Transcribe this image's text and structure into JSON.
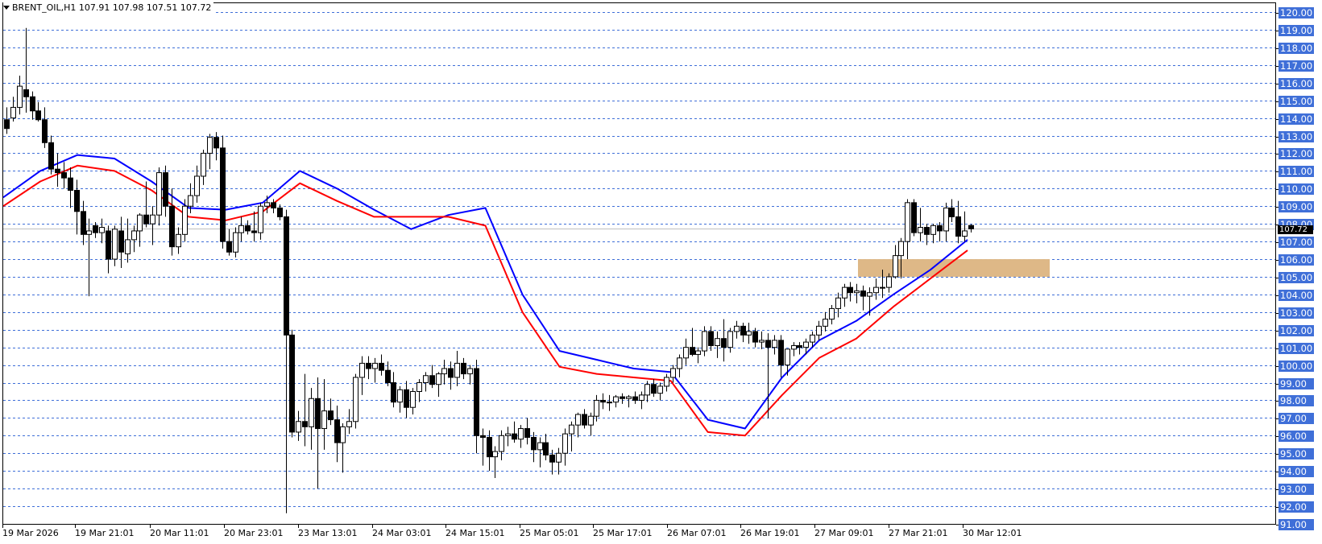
{
  "header": {
    "symbol_line": "BRENT_OIL,H1  107.91 107.98 107.51 107.72",
    "symbol": "BRENT_OIL",
    "timeframe": "H1",
    "open": 107.91,
    "high": 107.98,
    "low": 107.51,
    "close": 107.72
  },
  "price_axis": {
    "labels": [
      "120.00",
      "119.00",
      "118.00",
      "117.00",
      "116.00",
      "115.00",
      "114.00",
      "113.00",
      "112.00",
      "111.00",
      "110.00",
      "109.00",
      "108.00",
      "107.00",
      "106.00",
      "105.00",
      "104.00",
      "103.00",
      "102.00",
      "101.00",
      "100.00",
      "99.00",
      "98.00",
      "97.00",
      "96.00",
      "95.00",
      "94.00",
      "93.00",
      "92.00",
      "91.00"
    ],
    "current_price": "107.72",
    "label_bg": "#3f6fd8"
  },
  "time_axis": {
    "labels": [
      "19 Mar 2026",
      "19 Mar 21:01",
      "20 Mar 11:01",
      "20 Mar 23:01",
      "23 Mar 13:01",
      "24 Mar 03:01",
      "24 Mar 15:01",
      "25 Mar 05:01",
      "25 Mar 17:01",
      "26 Mar 07:01",
      "26 Mar 19:01",
      "27 Mar 09:01",
      "27 Mar 21:01",
      "30 Mar 12:01"
    ]
  },
  "colors": {
    "grid": "#3f6fd8",
    "ma_fast": "#0000ff",
    "ma_slow": "#ff0000",
    "zone": "#deb887",
    "bull": "#ffffff",
    "bear": "#000000",
    "bid_line": "#c0c0c0"
  },
  "chart_data": {
    "type": "candlestick",
    "title": "BRENT_OIL,H1",
    "ylim": [
      91,
      120
    ],
    "xlabel": "",
    "ylabel": "",
    "grid": true,
    "x_tick_labels": [
      "19 Mar 2026",
      "19 Mar 21:01",
      "20 Mar 11:01",
      "20 Mar 23:01",
      "23 Mar 13:01",
      "24 Mar 03:01",
      "24 Mar 15:01",
      "25 Mar 05:01",
      "25 Mar 17:01",
      "26 Mar 07:01",
      "26 Mar 19:01",
      "27 Mar 09:01",
      "27 Mar 21:01",
      "30 Mar 12:01"
    ],
    "last_bar": {
      "open": 107.91,
      "high": 107.98,
      "low": 107.51,
      "close": 107.72
    },
    "candles": [
      [
        113.9,
        114.6,
        113.1,
        113.4
      ],
      [
        114.0,
        115.2,
        113.8,
        114.6
      ],
      [
        114.6,
        116.4,
        114.2,
        115.8
      ],
      [
        115.6,
        119.1,
        114.3,
        115.2
      ],
      [
        115.2,
        115.5,
        113.9,
        114.4
      ],
      [
        114.4,
        114.9,
        113.8,
        113.9
      ],
      [
        113.9,
        114.6,
        112.3,
        112.6
      ],
      [
        112.6,
        113.0,
        110.8,
        111.1
      ],
      [
        111.1,
        112.0,
        110.1,
        110.9
      ],
      [
        110.9,
        111.5,
        110.0,
        110.6
      ],
      [
        110.6,
        111.2,
        108.9,
        109.9
      ],
      [
        109.9,
        110.5,
        107.4,
        108.7
      ],
      [
        108.7,
        109.3,
        106.8,
        107.4
      ],
      [
        107.4,
        108.3,
        103.9,
        107.6
      ],
      [
        107.9,
        108.1,
        107.2,
        107.5
      ],
      [
        107.5,
        108.3,
        106.9,
        107.8
      ],
      [
        107.6,
        107.9,
        105.2,
        106.0
      ],
      [
        106.0,
        107.9,
        105.6,
        107.7
      ],
      [
        107.6,
        108.4,
        105.5,
        106.4
      ],
      [
        106.3,
        108.3,
        105.8,
        107.1
      ],
      [
        107.1,
        107.9,
        106.4,
        107.6
      ],
      [
        107.6,
        108.6,
        106.7,
        108.5
      ],
      [
        108.5,
        110.4,
        107.8,
        108.0
      ],
      [
        108.0,
        109.0,
        106.8,
        108.5
      ],
      [
        108.5,
        111.2,
        107.9,
        110.9
      ],
      [
        110.9,
        111.3,
        108.4,
        109.0
      ],
      [
        109.0,
        110.0,
        106.2,
        106.7
      ],
      [
        106.7,
        107.8,
        106.3,
        107.4
      ],
      [
        107.4,
        109.4,
        107.0,
        109.0
      ],
      [
        109.0,
        110.3,
        108.6,
        109.6
      ],
      [
        109.6,
        111.3,
        109.2,
        110.7
      ],
      [
        110.7,
        112.2,
        110.2,
        112.0
      ],
      [
        112.0,
        113.1,
        111.1,
        112.9
      ],
      [
        112.9,
        113.2,
        111.6,
        112.3
      ],
      [
        112.3,
        113.0,
        106.6,
        107.0
      ],
      [
        107.0,
        107.7,
        106.2,
        106.4
      ],
      [
        106.4,
        107.8,
        106.1,
        107.5
      ],
      [
        107.5,
        108.4,
        107.0,
        107.9
      ],
      [
        107.9,
        108.2,
        107.4,
        107.6
      ],
      [
        107.6,
        108.7,
        107.0,
        107.5
      ],
      [
        107.5,
        109.2,
        107.1,
        109.0
      ],
      [
        109.0,
        109.6,
        108.6,
        109.2
      ],
      [
        109.2,
        109.4,
        108.6,
        108.9
      ],
      [
        108.9,
        109.1,
        108.2,
        108.4
      ],
      [
        108.4,
        108.8,
        91.6,
        101.7
      ],
      [
        101.7,
        102.0,
        95.9,
        96.2
      ],
      [
        96.2,
        97.4,
        95.7,
        96.8
      ],
      [
        96.8,
        99.5,
        95.4,
        96.5
      ],
      [
        96.5,
        98.7,
        95.2,
        98.1
      ],
      [
        98.1,
        99.3,
        93.0,
        96.4
      ],
      [
        96.4,
        99.2,
        95.2,
        97.4
      ],
      [
        97.4,
        98.1,
        96.6,
        96.9
      ],
      [
        96.9,
        97.7,
        94.5,
        95.6
      ],
      [
        95.6,
        96.7,
        93.9,
        96.5
      ],
      [
        96.5,
        97.5,
        96.1,
        96.8
      ],
      [
        96.8,
        99.5,
        96.4,
        99.3
      ],
      [
        99.3,
        100.5,
        98.3,
        100.1
      ],
      [
        100.1,
        100.5,
        99.2,
        99.8
      ],
      [
        99.8,
        100.4,
        99.0,
        100.1
      ],
      [
        100.1,
        100.6,
        99.4,
        99.7
      ],
      [
        99.7,
        100.2,
        98.8,
        99.0
      ],
      [
        99.0,
        99.6,
        97.6,
        97.9
      ],
      [
        97.9,
        98.8,
        97.3,
        98.6
      ],
      [
        98.6,
        99.1,
        97.0,
        97.6
      ],
      [
        97.6,
        98.7,
        97.2,
        98.5
      ],
      [
        98.5,
        99.2,
        97.9,
        99.0
      ],
      [
        99.0,
        99.6,
        98.5,
        99.4
      ],
      [
        99.4,
        100.0,
        98.7,
        98.9
      ],
      [
        98.9,
        99.6,
        98.2,
        99.5
      ],
      [
        99.5,
        100.3,
        98.9,
        99.8
      ],
      [
        99.8,
        100.2,
        98.6,
        99.3
      ],
      [
        99.3,
        100.8,
        98.8,
        100.1
      ],
      [
        100.1,
        100.4,
        99.2,
        99.5
      ],
      [
        99.5,
        100.0,
        98.9,
        99.8
      ],
      [
        99.8,
        100.3,
        95.0,
        96.0
      ],
      [
        96.0,
        96.4,
        94.3,
        95.9
      ],
      [
        95.9,
        96.3,
        94.0,
        94.8
      ],
      [
        94.8,
        95.4,
        93.6,
        95.1
      ],
      [
        95.1,
        96.3,
        94.6,
        96.0
      ],
      [
        96.0,
        96.5,
        95.4,
        96.1
      ],
      [
        96.1,
        96.8,
        95.6,
        95.8
      ],
      [
        95.8,
        96.6,
        95.3,
        96.4
      ],
      [
        96.4,
        97.0,
        95.5,
        95.9
      ],
      [
        95.9,
        96.2,
        94.5,
        95.2
      ],
      [
        95.2,
        95.9,
        94.2,
        95.6
      ],
      [
        95.6,
        96.1,
        94.6,
        94.9
      ],
      [
        94.9,
        95.2,
        93.8,
        94.5
      ],
      [
        94.5,
        95.3,
        93.8,
        95.0
      ],
      [
        95.0,
        96.4,
        94.3,
        96.1
      ],
      [
        96.1,
        96.8,
        95.1,
        96.6
      ],
      [
        96.6,
        97.3,
        95.9,
        97.2
      ],
      [
        97.2,
        97.5,
        96.4,
        96.6
      ],
      [
        96.6,
        97.3,
        96.0,
        97.1
      ],
      [
        97.1,
        98.3,
        96.8,
        98.0
      ],
      [
        98.0,
        98.4,
        97.5,
        97.9
      ],
      [
        97.9,
        98.3,
        97.4,
        97.9
      ],
      [
        97.9,
        98.3,
        97.6,
        98.2
      ],
      [
        98.2,
        98.4,
        97.8,
        98.1
      ],
      [
        98.1,
        98.3,
        97.6,
        98.2
      ],
      [
        98.2,
        98.5,
        97.8,
        98.0
      ],
      [
        98.0,
        98.5,
        97.5,
        98.3
      ],
      [
        98.3,
        99.1,
        97.9,
        98.9
      ],
      [
        98.9,
        99.2,
        98.2,
        98.4
      ],
      [
        98.4,
        99.0,
        98.0,
        98.8
      ],
      [
        98.8,
        99.5,
        98.5,
        99.3
      ],
      [
        99.3,
        100.0,
        99.0,
        99.8
      ],
      [
        99.8,
        100.6,
        99.3,
        100.4
      ],
      [
        100.4,
        101.5,
        100.0,
        101.0
      ],
      [
        101.0,
        102.1,
        100.5,
        100.6
      ],
      [
        100.6,
        101.0,
        100.1,
        100.8
      ],
      [
        100.8,
        102.2,
        100.5,
        101.9
      ],
      [
        101.9,
        102.2,
        100.8,
        101.1
      ],
      [
        101.1,
        101.9,
        100.4,
        101.5
      ],
      [
        101.5,
        102.6,
        100.2,
        101.0
      ],
      [
        101.0,
        102.1,
        100.7,
        101.9
      ],
      [
        101.9,
        102.5,
        101.5,
        102.2
      ],
      [
        102.2,
        102.4,
        101.3,
        101.7
      ],
      [
        101.7,
        102.4,
        101.2,
        101.9
      ],
      [
        101.9,
        102.1,
        101.0,
        101.3
      ],
      [
        101.3,
        101.9,
        100.9,
        101.4
      ],
      [
        101.4,
        101.8,
        97.0,
        101.0
      ],
      [
        101.0,
        101.7,
        100.6,
        101.4
      ],
      [
        101.4,
        101.7,
        99.3,
        100.0
      ],
      [
        100.0,
        100.9,
        99.4,
        100.9
      ],
      [
        100.9,
        101.3,
        100.5,
        101.1
      ],
      [
        101.1,
        101.3,
        100.6,
        101.0
      ],
      [
        101.0,
        101.5,
        100.6,
        101.3
      ],
      [
        101.3,
        101.9,
        101.0,
        101.7
      ],
      [
        101.7,
        102.5,
        101.4,
        102.2
      ],
      [
        102.2,
        103.0,
        101.9,
        102.6
      ],
      [
        102.6,
        103.4,
        102.3,
        103.2
      ],
      [
        103.2,
        104.1,
        102.7,
        103.8
      ],
      [
        103.8,
        104.6,
        103.3,
        104.4
      ],
      [
        104.4,
        104.7,
        103.6,
        104.1
      ],
      [
        104.1,
        104.6,
        103.5,
        104.2
      ],
      [
        104.2,
        104.5,
        103.1,
        103.9
      ],
      [
        103.9,
        104.4,
        102.8,
        104.1
      ],
      [
        104.1,
        104.9,
        103.7,
        104.4
      ],
      [
        104.4,
        105.4,
        103.8,
        104.4
      ],
      [
        104.4,
        105.2,
        104.1,
        105.0
      ],
      [
        105.0,
        106.8,
        104.9,
        106.2
      ],
      [
        106.2,
        107.2,
        104.9,
        107.0
      ],
      [
        107.0,
        109.4,
        106.0,
        109.2
      ],
      [
        109.2,
        109.4,
        107.3,
        107.5
      ],
      [
        107.5,
        108.9,
        107.0,
        107.8
      ],
      [
        107.8,
        108.0,
        106.8,
        107.4
      ],
      [
        107.4,
        108.0,
        106.9,
        107.9
      ],
      [
        107.9,
        108.1,
        107.0,
        107.6
      ],
      [
        107.6,
        109.2,
        107.0,
        108.9
      ],
      [
        108.9,
        109.4,
        108.1,
        108.4
      ],
      [
        108.4,
        109.3,
        106.9,
        107.3
      ],
      [
        107.3,
        108.7,
        107.0,
        107.6
      ],
      [
        107.91,
        107.98,
        107.51,
        107.72
      ]
    ],
    "series": [
      {
        "name": "MA fast (blue)",
        "color": "#0000ff",
        "values": [
          109.5,
          111.0,
          111.9,
          111.7,
          110.4,
          108.9,
          108.8,
          109.2,
          111.0,
          110.0,
          108.8,
          107.7,
          108.5,
          108.9,
          104.0,
          100.8,
          100.3,
          99.8,
          99.6,
          96.9,
          96.4,
          99.3,
          101.4,
          102.5,
          104.0,
          105.4,
          107.1
        ]
      },
      {
        "name": "MA slow (red)",
        "color": "#ff0000",
        "values": [
          109.0,
          110.4,
          111.3,
          111.0,
          109.9,
          108.4,
          108.2,
          108.7,
          110.3,
          109.3,
          108.4,
          108.4,
          108.4,
          107.9,
          103.0,
          99.9,
          99.5,
          99.3,
          99.1,
          96.2,
          96.0,
          98.3,
          100.4,
          101.5,
          103.3,
          104.9,
          106.5
        ]
      }
    ],
    "zone": {
      "y_from": 105.0,
      "y_to": 106.0,
      "x_start_frac": 0.674,
      "x_end_frac": 0.824
    }
  }
}
